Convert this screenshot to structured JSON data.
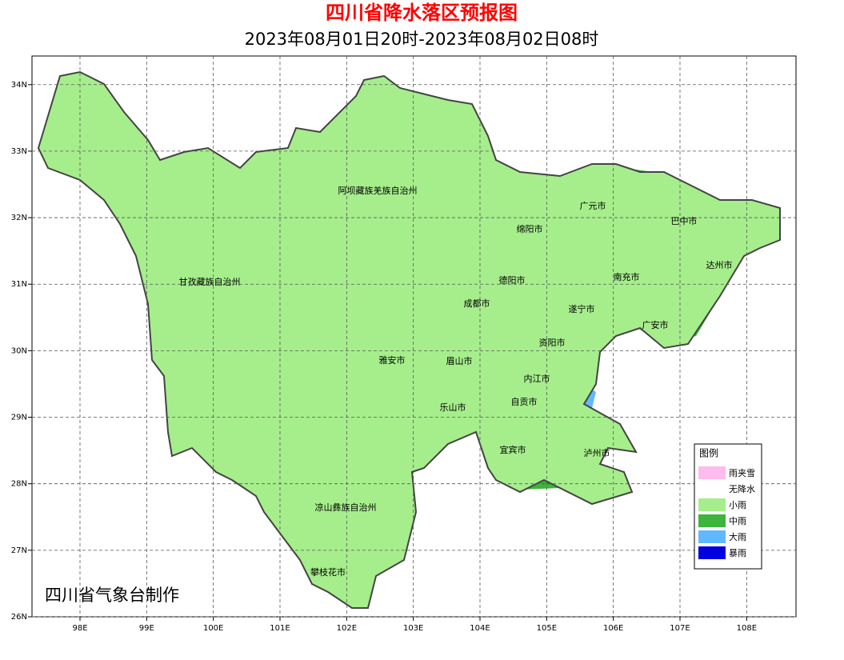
{
  "map": {
    "title": "四川省降水落区预报图",
    "subtitle": "2023年08月01日20时-2023年08月02日08时",
    "xlim": [
      97.28,
      108.74
    ],
    "ylim": [
      26,
      34.43
    ],
    "xticks": [
      {
        "value": 98,
        "label": "98E"
      },
      {
        "value": 99,
        "label": "99E"
      },
      {
        "value": 100,
        "label": "100E"
      },
      {
        "value": 101,
        "label": "101E"
      },
      {
        "value": 102,
        "label": "102E"
      },
      {
        "value": 103,
        "label": "103E"
      },
      {
        "value": 104,
        "label": "104E"
      },
      {
        "value": 105,
        "label": "105E"
      },
      {
        "value": 106,
        "label": "106E"
      },
      {
        "value": 107,
        "label": "107E"
      },
      {
        "value": 108,
        "label": "108E"
      }
    ],
    "yticks": [
      {
        "value": 26,
        "label": "26N"
      },
      {
        "value": 27,
        "label": "27N"
      },
      {
        "value": 28,
        "label": "28N"
      },
      {
        "value": 29,
        "label": "29N"
      },
      {
        "value": 30,
        "label": "30N"
      },
      {
        "value": 31,
        "label": "31N"
      },
      {
        "value": 32,
        "label": "32N"
      },
      {
        "value": 33,
        "label": "33N"
      },
      {
        "value": 34,
        "label": "34N"
      }
    ],
    "cities": [
      "阿坝藏族羌族自治州",
      "甘孜藏族自治州",
      "凉山彝族自治州",
      "攀枝花市",
      "广元市",
      "巴中市",
      "绵阳市",
      "达州市",
      "德阳市",
      "南充市",
      "成都市",
      "遂宁市",
      "广安市",
      "资阳市",
      "雅安市",
      "眉山市",
      "内江市",
      "乐山市",
      "自贡市",
      "宜宾市",
      "泸州市"
    ],
    "legend": {
      "title": "图例",
      "items": [
        {
          "name": "雨夹雪",
          "color": "#ffbbee"
        },
        {
          "name": "无降水",
          "color": "#ffffff"
        },
        {
          "name": "小雨",
          "color": "#a6ee8c"
        },
        {
          "name": "中雨",
          "color": "#3db53d"
        },
        {
          "name": "大雨",
          "color": "#61b8ff"
        },
        {
          "name": "暴雨",
          "color": "#0000e0"
        }
      ]
    },
    "credit": "四川省气象台制作"
  }
}
